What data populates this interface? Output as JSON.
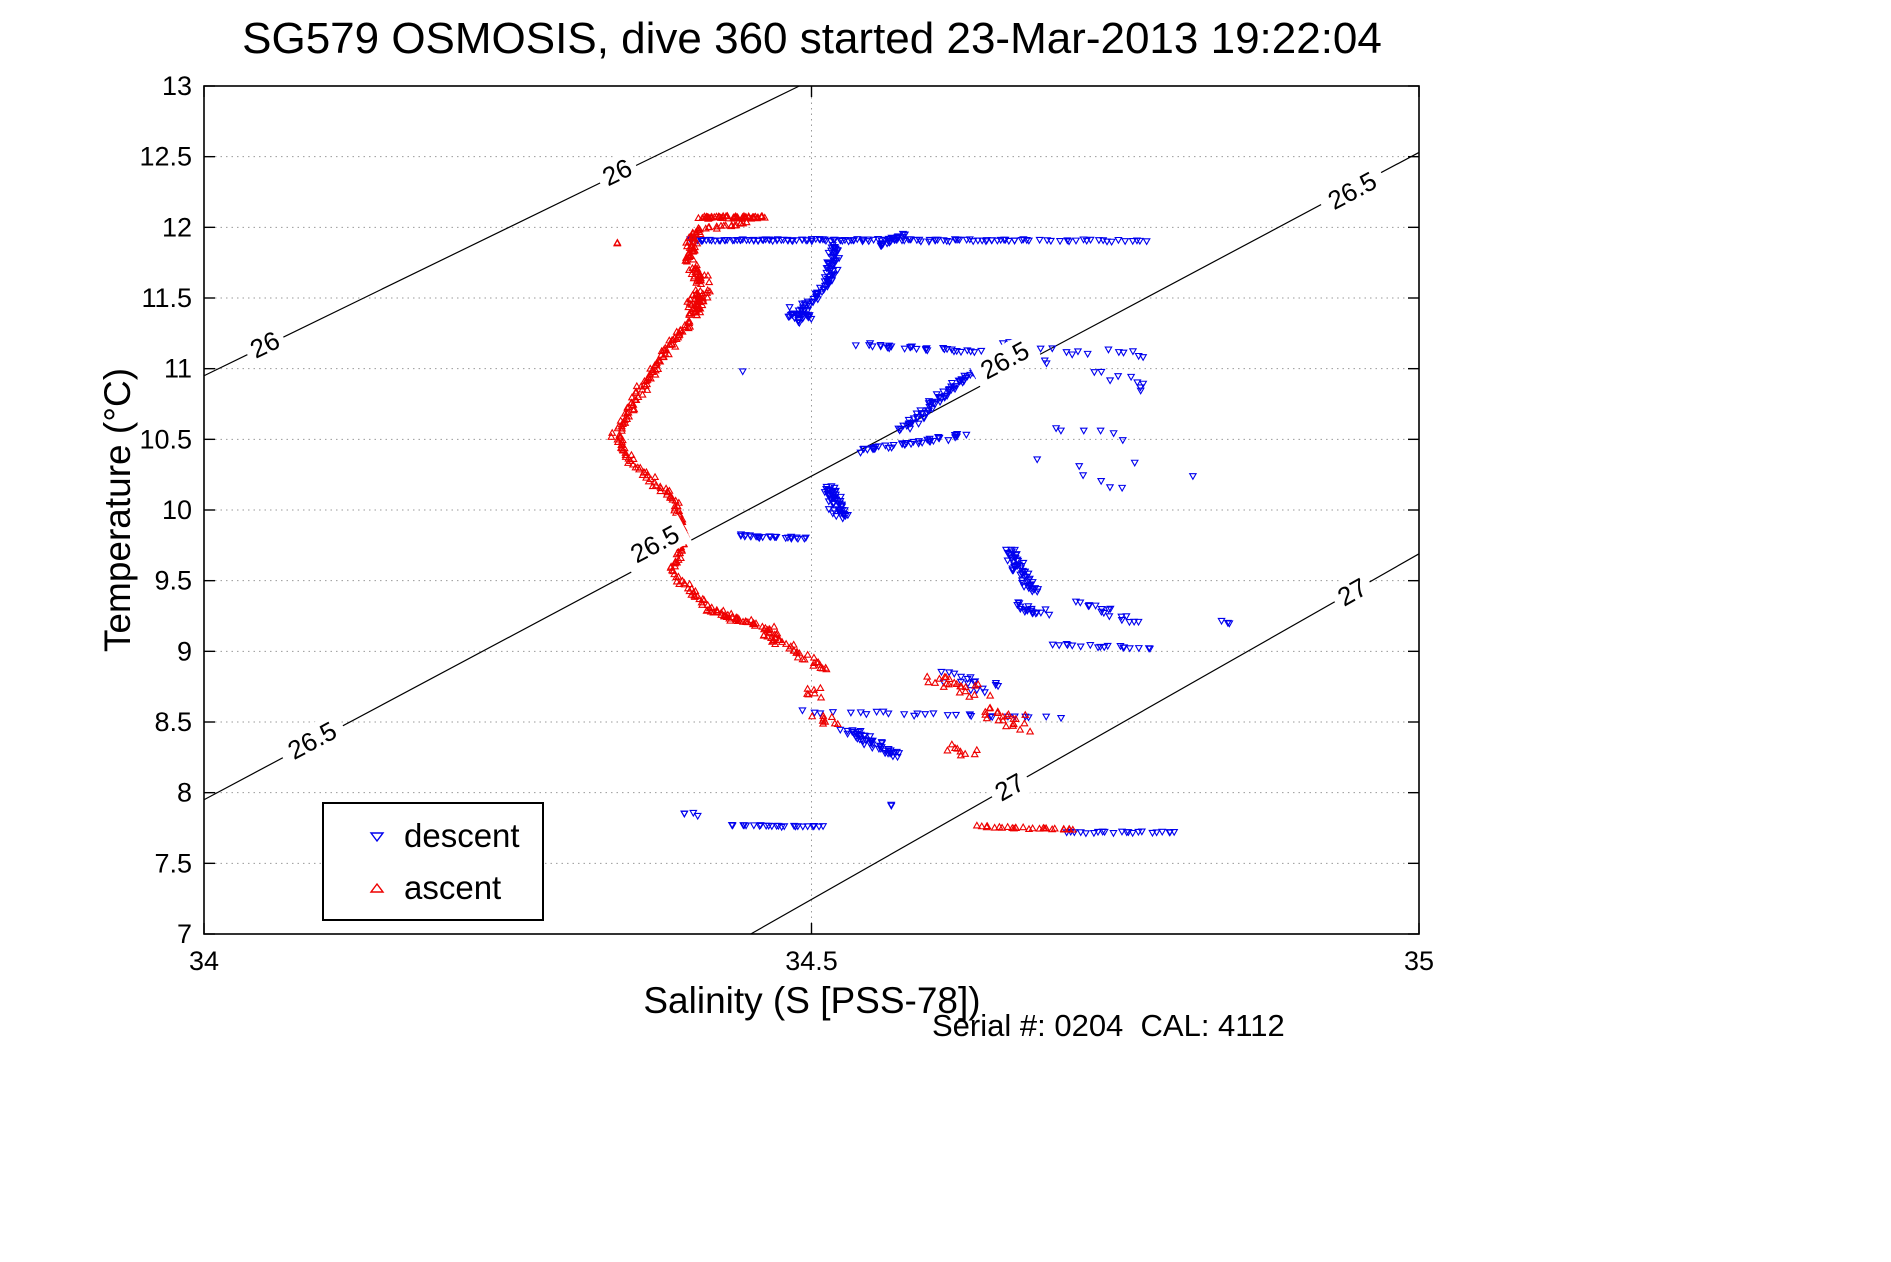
{
  "window": {
    "background": "#ffffff"
  },
  "chart_data": {
    "type": "scatter",
    "title": "SG579 OSMOSIS, dive 360 started 23-Mar-2013 19:22:04",
    "xlabel": "Salinity (S [PSS-78])",
    "ylabel": "Temperature (°C)",
    "annotation": "Serial #: 0204  CAL: 4112",
    "xlim": [
      34,
      35
    ],
    "ylim": [
      7,
      13
    ],
    "xticks": [
      34,
      34.5,
      35
    ],
    "xtick_labels": [
      "34",
      "34.5",
      "35"
    ],
    "yticks": [
      7,
      7.5,
      8,
      8.5,
      9,
      9.5,
      10,
      10.5,
      11,
      11.5,
      12,
      12.5,
      13
    ],
    "ytick_labels": [
      "7",
      "7.5",
      "8",
      "8.5",
      "9",
      "9.5",
      "10",
      "10.5",
      "11",
      "11.5",
      "12",
      "12.5",
      "13"
    ],
    "grid": true,
    "grid_style": "dotted",
    "grid_color": "#9a9a9a",
    "axes_color": "#000000",
    "legend": {
      "position": "lower-left",
      "entries": [
        {
          "label": "descent",
          "color": "#0000ee",
          "marker": "triangle-down"
        },
        {
          "label": "ascent",
          "color": "#ee0000",
          "marker": "triangle-up"
        }
      ]
    },
    "isopycnals": {
      "note": "sigma-theta density contour lines, straight segments in S/T space, labels placed inline on the line",
      "color": "#000000",
      "label_font_px": 26,
      "lines": [
        {
          "value": "26",
          "line": [
            [
              34.0,
              10.95
            ],
            [
              34.49,
              13.0
            ]
          ],
          "labels": [
            [
              34.05,
              11.17
            ],
            [
              34.34,
              12.39
            ]
          ]
        },
        {
          "value": "26.5",
          "line": [
            [
              34.0,
              7.95
            ],
            [
              35.0,
              12.53
            ]
          ],
          "labels": [
            [
              34.089,
              8.37
            ],
            [
              34.371,
              9.76
            ],
            [
              34.659,
              11.06
            ],
            [
              34.945,
              12.26
            ]
          ]
        },
        {
          "value": "27",
          "line": [
            [
              34.45,
              7.0
            ],
            [
              35.0,
              9.69
            ]
          ],
          "labels": [
            [
              34.663,
              8.04
            ],
            [
              34.945,
              9.42
            ]
          ]
        }
      ]
    },
    "segment_format": "[S_start, T_start, S_end, T_end, point_count, S_jitter, T_jitter] — points are spread uniformly along the segment with random jitter; reconstructed approximation of the dense scatter",
    "series": [
      {
        "name": "descent",
        "color": "#0000ee",
        "marker": "triangle-down",
        "segments": [
          [
            34.4,
            11.91,
            34.545,
            11.91,
            70,
            0.003,
            0.01
          ],
          [
            34.545,
            11.91,
            34.68,
            11.91,
            50,
            0.004,
            0.012
          ],
          [
            34.69,
            11.905,
            34.775,
            11.905,
            20,
            0.005,
            0.01
          ],
          [
            34.555,
            11.87,
            34.575,
            11.95,
            25,
            0.006,
            0.015
          ],
          [
            34.52,
            11.88,
            34.515,
            11.62,
            45,
            0.006,
            0.018
          ],
          [
            34.515,
            11.62,
            34.495,
            11.44,
            30,
            0.006,
            0.018
          ],
          [
            34.49,
            11.42,
            34.49,
            11.34,
            35,
            0.012,
            0.03
          ],
          [
            34.54,
            11.17,
            34.64,
            11.12,
            30,
            0.008,
            0.018
          ],
          [
            34.655,
            11.18,
            34.73,
            11.1,
            10,
            0.008,
            0.02
          ],
          [
            34.745,
            11.13,
            34.775,
            11.1,
            6,
            0.01,
            0.02
          ],
          [
            34.76,
            10.95,
            34.78,
            10.85,
            5,
            0.012,
            0.04
          ],
          [
            34.575,
            10.56,
            34.635,
            11.0,
            70,
            0.006,
            0.025
          ],
          [
            34.54,
            10.42,
            34.625,
            10.53,
            40,
            0.007,
            0.02
          ],
          [
            34.7,
            10.6,
            34.76,
            10.5,
            6,
            0.012,
            0.03
          ],
          [
            34.515,
            10.17,
            34.525,
            9.95,
            55,
            0.008,
            0.025
          ],
          [
            34.44,
            9.82,
            34.495,
            9.8,
            25,
            0.005,
            0.012
          ],
          [
            34.66,
            9.72,
            34.685,
            9.42,
            55,
            0.008,
            0.025
          ],
          [
            34.67,
            9.33,
            34.69,
            9.26,
            20,
            0.01,
            0.03
          ],
          [
            34.72,
            9.36,
            34.765,
            9.2,
            18,
            0.01,
            0.025
          ],
          [
            34.7,
            9.05,
            34.78,
            9.02,
            18,
            0.008,
            0.012
          ],
          [
            34.61,
            8.85,
            34.65,
            8.72,
            18,
            0.015,
            0.045
          ],
          [
            34.5,
            8.57,
            34.7,
            8.53,
            28,
            0.01,
            0.02
          ],
          [
            34.53,
            8.44,
            34.57,
            8.26,
            50,
            0.009,
            0.035
          ],
          [
            34.395,
            7.86,
            34.405,
            7.84,
            4,
            0.005,
            0.015
          ],
          [
            34.435,
            7.77,
            34.51,
            7.76,
            24,
            0.004,
            0.008
          ],
          [
            34.71,
            7.72,
            34.8,
            7.72,
            22,
            0.005,
            0.008
          ],
          [
            34.835,
            9.22,
            34.845,
            9.2,
            3,
            0.01,
            0.02
          ],
          [
            34.72,
            10.25,
            34.76,
            10.15,
            4,
            0.02,
            0.06
          ],
          [
            34.69,
            11.05,
            34.77,
            10.9,
            6,
            0.02,
            0.06
          ],
          [
            34.7,
            10.35,
            34.82,
            10.3,
            4,
            0.03,
            0.1
          ],
          [
            34.443,
            10.98,
            34.443,
            10.98,
            1,
            0.001,
            0.001
          ],
          [
            34.565,
            7.91,
            34.565,
            7.91,
            2,
            0.004,
            0.01
          ]
        ]
      },
      {
        "name": "ascent",
        "color": "#ee0000",
        "marker": "triangle-up",
        "segments": [
          [
            34.408,
            12.07,
            34.462,
            12.07,
            55,
            0.004,
            0.012
          ],
          [
            34.448,
            12.03,
            34.408,
            11.99,
            18,
            0.005,
            0.012
          ],
          [
            34.405,
            11.98,
            34.398,
            11.76,
            40,
            0.006,
            0.015
          ],
          [
            34.402,
            11.72,
            34.412,
            11.6,
            28,
            0.008,
            0.02
          ],
          [
            34.408,
            11.56,
            34.404,
            11.38,
            55,
            0.009,
            0.025
          ],
          [
            34.398,
            11.34,
            34.378,
            11.08,
            35,
            0.006,
            0.018
          ],
          [
            34.375,
            11.06,
            34.358,
            10.82,
            30,
            0.005,
            0.018
          ],
          [
            34.355,
            10.8,
            34.342,
            10.56,
            28,
            0.005,
            0.018
          ],
          [
            34.338,
            10.54,
            34.35,
            10.36,
            22,
            0.005,
            0.015
          ],
          [
            34.352,
            10.34,
            34.388,
            10.06,
            32,
            0.006,
            0.018
          ],
          [
            34.39,
            10.04,
            34.396,
            9.76,
            28,
            0.005,
            0.018
          ],
          [
            34.393,
            9.74,
            34.385,
            9.56,
            18,
            0.004,
            0.014
          ],
          [
            34.388,
            9.54,
            34.412,
            9.32,
            24,
            0.005,
            0.016
          ],
          [
            34.415,
            9.3,
            34.455,
            9.18,
            40,
            0.007,
            0.022
          ],
          [
            34.462,
            9.16,
            34.475,
            9.06,
            25,
            0.009,
            0.03
          ],
          [
            34.48,
            9.04,
            34.512,
            8.86,
            22,
            0.008,
            0.025
          ],
          [
            34.498,
            8.74,
            34.505,
            8.68,
            7,
            0.01,
            0.03
          ],
          [
            34.505,
            8.55,
            34.515,
            8.48,
            9,
            0.012,
            0.03
          ],
          [
            34.6,
            8.82,
            34.64,
            8.7,
            22,
            0.018,
            0.05
          ],
          [
            34.645,
            8.6,
            34.67,
            8.45,
            22,
            0.016,
            0.055
          ],
          [
            34.615,
            8.32,
            34.635,
            8.26,
            9,
            0.014,
            0.035
          ],
          [
            34.635,
            7.76,
            34.718,
            7.74,
            28,
            0.006,
            0.01
          ],
          [
            34.34,
            11.89,
            34.34,
            11.89,
            2,
            0.003,
            0.008
          ]
        ]
      }
    ]
  }
}
